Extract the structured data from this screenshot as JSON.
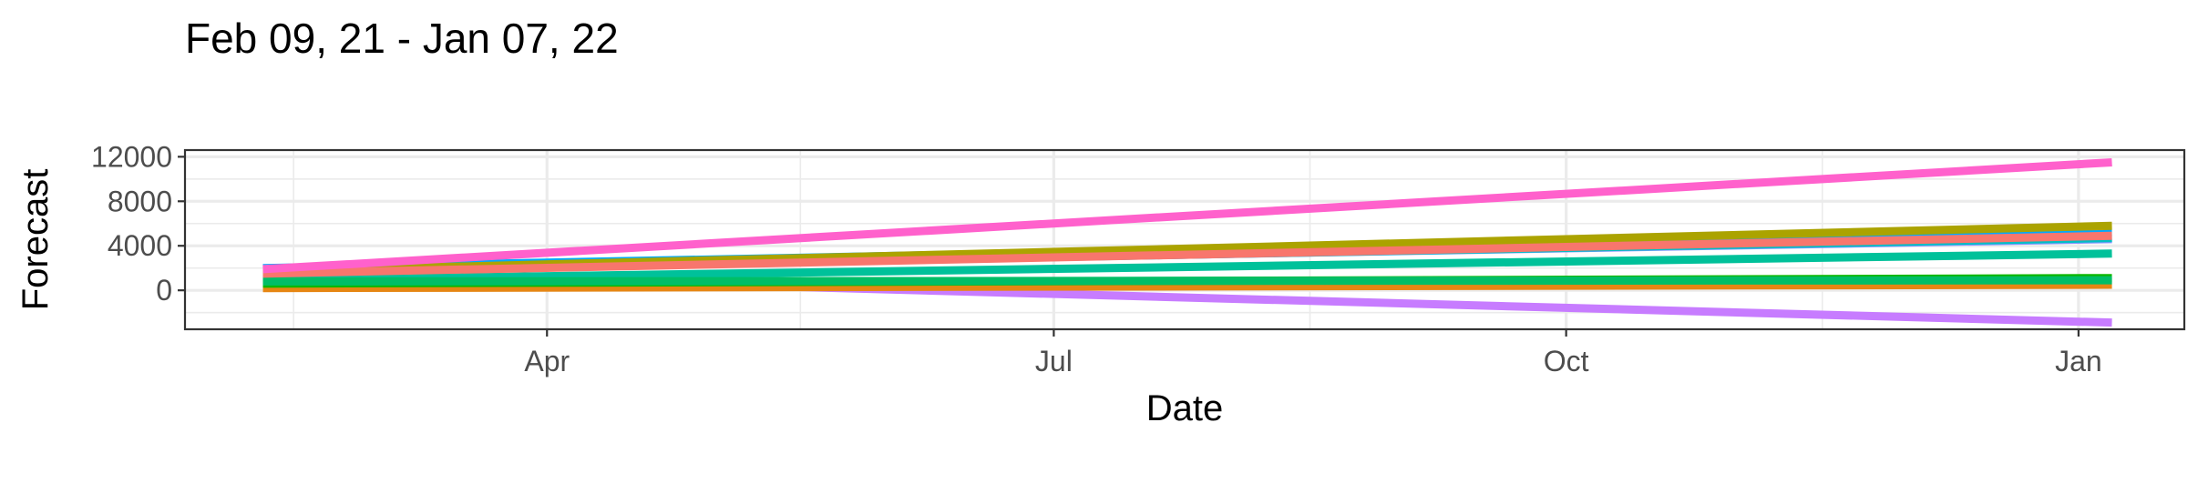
{
  "chart_data": {
    "type": "line",
    "title": "Feb 09, 21 - Jan 07, 22",
    "xlabel": "Date",
    "ylabel": "Forecast",
    "x_range": [
      "2021-02-09",
      "2022-01-07"
    ],
    "xlim": [
      "2021-01-26",
      "2022-01-20"
    ],
    "ylim": [
      -3500,
      12600
    ],
    "x_ticks": [
      {
        "date": "2021-04-01",
        "label": "Apr"
      },
      {
        "date": "2021-07-01",
        "label": "Jul"
      },
      {
        "date": "2021-10-01",
        "label": "Oct"
      },
      {
        "date": "2022-01-01",
        "label": "Jan"
      }
    ],
    "y_ticks": [
      0,
      4000,
      8000,
      12000
    ],
    "grid": true,
    "legend": "none",
    "series": [
      {
        "color": "#C77CFF",
        "x": [
          "2021-02-09",
          "2022-01-07"
        ],
        "values": [
          1600,
          -2900
        ]
      },
      {
        "color": "#E68613",
        "x": [
          "2021-02-09",
          "2022-01-07"
        ],
        "values": [
          200,
          500
        ]
      },
      {
        "color": "#00A9FF",
        "x": [
          "2021-02-09",
          "2022-01-07"
        ],
        "values": [
          2000,
          5200
        ]
      },
      {
        "color": "#8494FF",
        "x": [
          "2021-02-09",
          "2022-01-07"
        ],
        "values": [
          1800,
          4600
        ]
      },
      {
        "color": "#00BFC4",
        "x": [
          "2021-02-09",
          "2022-01-07"
        ],
        "values": [
          1700,
          4700
        ]
      },
      {
        "color": "#00C19A",
        "x": [
          "2021-02-09",
          "2022-01-07"
        ],
        "values": [
          900,
          3300
        ]
      },
      {
        "color": "#0CB702",
        "x": [
          "2021-02-09",
          "2022-01-07"
        ],
        "values": [
          600,
          1100
        ]
      },
      {
        "color": "#00BE67",
        "x": [
          "2021-02-09",
          "2022-01-07"
        ],
        "values": [
          800,
          900
        ]
      },
      {
        "color": "#ABA300",
        "x": [
          "2021-02-09",
          "2022-01-07"
        ],
        "values": [
          1700,
          5800
        ]
      },
      {
        "color": "#F8766D",
        "x": [
          "2021-02-09",
          "2022-01-07"
        ],
        "values": [
          1500,
          4900
        ]
      },
      {
        "color": "#FF61CC",
        "x": [
          "2021-02-09",
          "2022-01-07"
        ],
        "values": [
          1900,
          11500
        ]
      }
    ]
  }
}
